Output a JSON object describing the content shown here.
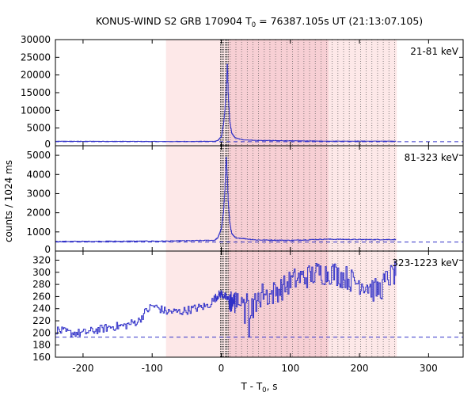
{
  "title": {
    "pre": "KONUS-WIND S2 GRB 170904 T",
    "sub": "0",
    "post": " = 76387.105s UT (21:13:07.105)"
  },
  "ylabel": "counts / 1024 ms",
  "xlabel": {
    "pre": "T - T",
    "sub": "0",
    "post": ", s"
  },
  "colors": {
    "data": "#3030c8",
    "background_line": "#3030c8",
    "light_shade": "#fde8e8",
    "dark_shade": "#f7cfd4",
    "dotted": "#555555"
  },
  "chart_data": [
    {
      "type": "line",
      "step": true,
      "band": "21-81 keV",
      "xlim": [
        -240,
        350
      ],
      "ylim": [
        0,
        30000
      ],
      "x_ticks": [
        -200,
        -100,
        0,
        100,
        200,
        300
      ],
      "y_ticks": [
        0,
        5000,
        10000,
        15000,
        20000,
        25000,
        30000
      ],
      "background_level": 1150,
      "series_points": [
        [
          -240,
          1250
        ],
        [
          -150,
          1230
        ],
        [
          -80,
          1200
        ],
        [
          -10,
          1230
        ],
        [
          -5,
          1500
        ],
        [
          0,
          2600
        ],
        [
          3,
          6000
        ],
        [
          5,
          10000
        ],
        [
          7,
          16000
        ],
        [
          8.5,
          23500
        ],
        [
          10,
          14000
        ],
        [
          12,
          7000
        ],
        [
          15,
          3500
        ],
        [
          20,
          2200
        ],
        [
          30,
          1700
        ],
        [
          50,
          1500
        ],
        [
          100,
          1400
        ],
        [
          150,
          1300
        ],
        [
          200,
          1300
        ],
        [
          253,
          1280
        ]
      ]
    },
    {
      "type": "line",
      "step": true,
      "band": "81-323 keV",
      "xlim": [
        -240,
        350
      ],
      "ylim": [
        0,
        5500
      ],
      "x_ticks": [
        -200,
        -100,
        0,
        100,
        200,
        300
      ],
      "y_ticks": [
        0,
        1000,
        2000,
        3000,
        4000,
        5000
      ],
      "background_level": 470,
      "series_points": [
        [
          -240,
          500
        ],
        [
          -150,
          510
        ],
        [
          -80,
          520
        ],
        [
          -10,
          560
        ],
        [
          -5,
          700
        ],
        [
          0,
          1200
        ],
        [
          3,
          2000
        ],
        [
          5,
          3200
        ],
        [
          7,
          5000
        ],
        [
          8.5,
          3800
        ],
        [
          10,
          2500
        ],
        [
          12,
          1500
        ],
        [
          15,
          900
        ],
        [
          20,
          700
        ],
        [
          50,
          580
        ],
        [
          100,
          560
        ],
        [
          150,
          620
        ],
        [
          200,
          600
        ],
        [
          253,
          600
        ]
      ]
    },
    {
      "type": "line",
      "step": true,
      "band": "323-1223 keV",
      "xlim": [
        -240,
        350
      ],
      "ylim": [
        160,
        335
      ],
      "x_ticks": [
        -200,
        -100,
        0,
        100,
        200,
        300
      ],
      "y_ticks": [
        160,
        180,
        200,
        220,
        240,
        260,
        280,
        300,
        320
      ],
      "background_level": 193,
      "series_points": [
        [
          -240,
          205
        ],
        [
          -220,
          200
        ],
        [
          -200,
          200
        ],
        [
          -180,
          205
        ],
        [
          -160,
          210
        ],
        [
          -140,
          212
        ],
        [
          -120,
          220
        ],
        [
          -110,
          235
        ],
        [
          -100,
          245
        ],
        [
          -90,
          240
        ],
        [
          -80,
          235
        ],
        [
          -60,
          235
        ],
        [
          -40,
          240
        ],
        [
          -20,
          245
        ],
        [
          -5,
          262
        ],
        [
          0,
          265
        ],
        [
          10,
          255
        ],
        [
          20,
          250
        ],
        [
          30,
          258
        ],
        [
          40,
          240
        ],
        [
          50,
          255
        ],
        [
          60,
          265
        ],
        [
          70,
          262
        ],
        [
          80,
          270
        ],
        [
          90,
          275
        ],
        [
          100,
          285
        ],
        [
          110,
          290
        ],
        [
          120,
          292
        ],
        [
          130,
          295
        ],
        [
          140,
          300
        ],
        [
          150,
          298
        ],
        [
          160,
          300
        ],
        [
          170,
          295
        ],
        [
          180,
          292
        ],
        [
          190,
          285
        ],
        [
          200,
          283
        ],
        [
          210,
          280
        ],
        [
          220,
          270
        ],
        [
          230,
          272
        ],
        [
          240,
          290
        ],
        [
          253,
          300
        ]
      ]
    }
  ],
  "shading": {
    "light_range": [
      -80,
      254
    ],
    "dark_range": [
      10,
      155
    ]
  },
  "dotted_lines": {
    "thick": [
      -1,
      1,
      3,
      6,
      8,
      10
    ],
    "thin_start": 13,
    "thin_end": 254,
    "thin_step": 8.2
  }
}
